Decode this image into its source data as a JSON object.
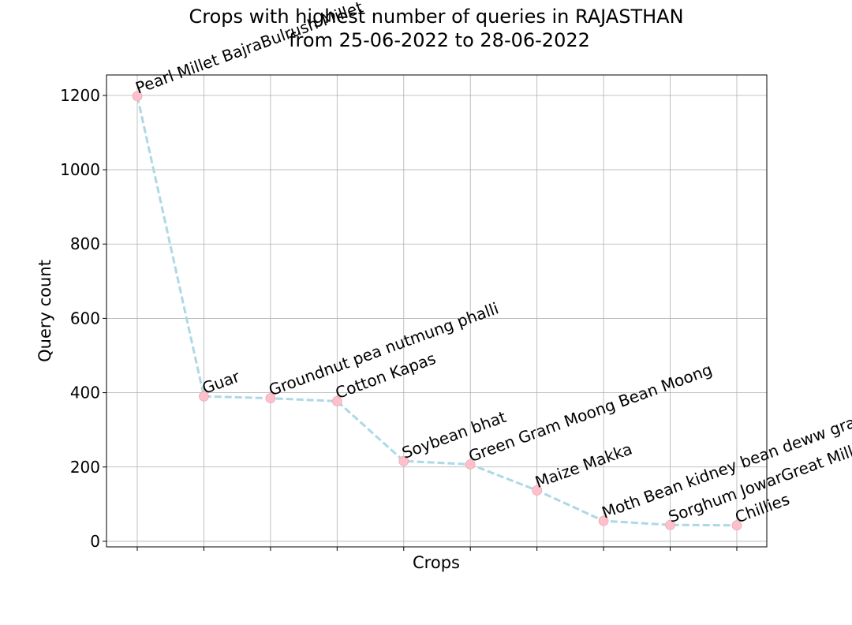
{
  "chart_data": {
    "type": "line",
    "title_line1": "Crops with highest number of queries in RAJASTHAN",
    "title_line2": "from 25-06-2022 to 28-06-2022",
    "xlabel": "Crops",
    "ylabel": "Query count",
    "categories": [
      "Pearl Millet BajraBulrush Millet",
      "Guar",
      "Groundnut pea nutmung phalli",
      "Cotton Kapas",
      "Soybean bhat",
      "Green Gram Moong Bean Moong",
      "Maize Makka",
      "Moth Bean kidney bean deww gram",
      "Sorghum JowarGreat Millet",
      "Chillies"
    ],
    "values": [
      1198,
      390,
      385,
      377,
      216,
      207,
      137,
      55,
      44,
      43
    ],
    "ylim": [
      -15,
      1255
    ],
    "yticks": [
      0,
      200,
      400,
      600,
      800,
      1000,
      1200
    ],
    "grid": true,
    "line_color": "#add8e6",
    "line_style": "dashed",
    "marker_color": "#ffc0cb"
  }
}
